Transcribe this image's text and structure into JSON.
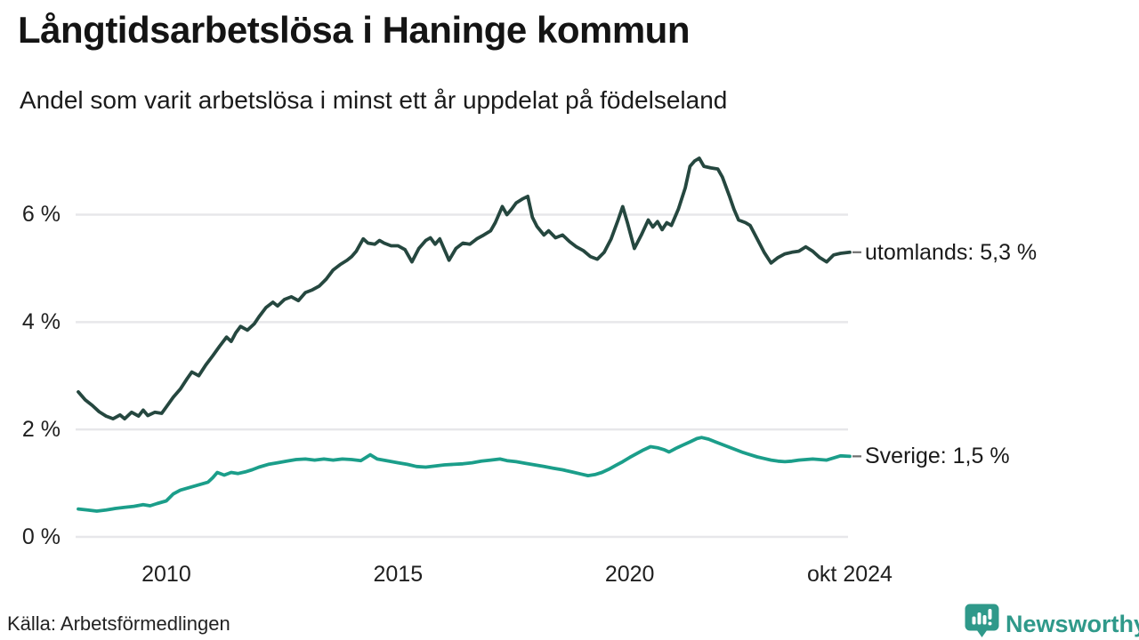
{
  "header": {
    "title": "Långtidsarbetslösa i Haninge kommun",
    "subtitle": "Andel som varit arbetslösa i minst ett år uppdelat på födelseland"
  },
  "footer": {
    "source": "Källa: Arbetsförmedlingen",
    "brand_name": "Newsworthy",
    "brand_color": "#2f998a",
    "brand_icon": "newsworthy-bubble-barchart-icon"
  },
  "chart_data": {
    "type": "line",
    "title": "Långtidsarbetslösa i Haninge kommun",
    "subtitle": "Andel som varit arbetslösa i minst ett år uppdelat på födelseland",
    "xlabel": "",
    "ylabel": "",
    "unit": "%",
    "grid": "horizontal",
    "legend_position": "right-end-annotations",
    "xlim": [
      2008.1,
      2024.75
    ],
    "ylim": [
      0,
      7.3
    ],
    "colors": {
      "gridline": "#e7e7ea",
      "leader_dash": "#6e6e6e",
      "text": "#1a1a1a"
    },
    "yticks": [
      {
        "label": "6 %",
        "value": 6
      },
      {
        "label": "4 %",
        "value": 4
      },
      {
        "label": "2 %",
        "value": 2
      },
      {
        "label": "0 %",
        "value": 0
      }
    ],
    "xticks": [
      {
        "label": "2010",
        "value": 2010
      },
      {
        "label": "2015",
        "value": 2015
      },
      {
        "label": "2020",
        "value": 2020
      },
      {
        "label": "okt 2024",
        "value": 2024.75
      }
    ],
    "series": [
      {
        "name": "utomlands",
        "label": "utomlands: 5,3 %",
        "last_value_label": "5,3 %",
        "color": "#25473f",
        "points": [
          [
            2008.1,
            2.7
          ],
          [
            2008.25,
            2.55
          ],
          [
            2008.4,
            2.45
          ],
          [
            2008.55,
            2.33
          ],
          [
            2008.7,
            2.25
          ],
          [
            2008.85,
            2.2
          ],
          [
            2009.0,
            2.27
          ],
          [
            2009.1,
            2.2
          ],
          [
            2009.25,
            2.32
          ],
          [
            2009.4,
            2.25
          ],
          [
            2009.5,
            2.36
          ],
          [
            2009.6,
            2.26
          ],
          [
            2009.75,
            2.32
          ],
          [
            2009.9,
            2.3
          ],
          [
            2010.0,
            2.42
          ],
          [
            2010.15,
            2.6
          ],
          [
            2010.3,
            2.75
          ],
          [
            2010.45,
            2.95
          ],
          [
            2010.55,
            3.07
          ],
          [
            2010.7,
            3.0
          ],
          [
            2010.85,
            3.2
          ],
          [
            2011.0,
            3.37
          ],
          [
            2011.15,
            3.55
          ],
          [
            2011.3,
            3.72
          ],
          [
            2011.4,
            3.64
          ],
          [
            2011.5,
            3.8
          ],
          [
            2011.6,
            3.92
          ],
          [
            2011.75,
            3.85
          ],
          [
            2011.9,
            3.97
          ],
          [
            2012.0,
            4.1
          ],
          [
            2012.15,
            4.27
          ],
          [
            2012.3,
            4.37
          ],
          [
            2012.4,
            4.3
          ],
          [
            2012.55,
            4.42
          ],
          [
            2012.7,
            4.47
          ],
          [
            2012.85,
            4.4
          ],
          [
            2013.0,
            4.55
          ],
          [
            2013.15,
            4.6
          ],
          [
            2013.3,
            4.67
          ],
          [
            2013.45,
            4.8
          ],
          [
            2013.6,
            4.97
          ],
          [
            2013.75,
            5.07
          ],
          [
            2013.9,
            5.15
          ],
          [
            2014.0,
            5.22
          ],
          [
            2014.1,
            5.32
          ],
          [
            2014.25,
            5.55
          ],
          [
            2014.35,
            5.47
          ],
          [
            2014.5,
            5.45
          ],
          [
            2014.6,
            5.52
          ],
          [
            2014.7,
            5.47
          ],
          [
            2014.85,
            5.42
          ],
          [
            2015.0,
            5.42
          ],
          [
            2015.15,
            5.35
          ],
          [
            2015.3,
            5.12
          ],
          [
            2015.45,
            5.37
          ],
          [
            2015.6,
            5.52
          ],
          [
            2015.7,
            5.57
          ],
          [
            2015.8,
            5.45
          ],
          [
            2015.9,
            5.55
          ],
          [
            2016.0,
            5.35
          ],
          [
            2016.1,
            5.15
          ],
          [
            2016.25,
            5.37
          ],
          [
            2016.4,
            5.47
          ],
          [
            2016.55,
            5.45
          ],
          [
            2016.7,
            5.55
          ],
          [
            2016.85,
            5.62
          ],
          [
            2017.0,
            5.7
          ],
          [
            2017.1,
            5.85
          ],
          [
            2017.25,
            6.15
          ],
          [
            2017.35,
            6.0
          ],
          [
            2017.45,
            6.1
          ],
          [
            2017.55,
            6.22
          ],
          [
            2017.7,
            6.3
          ],
          [
            2017.8,
            6.34
          ],
          [
            2017.9,
            5.95
          ],
          [
            2018.0,
            5.78
          ],
          [
            2018.15,
            5.62
          ],
          [
            2018.25,
            5.7
          ],
          [
            2018.4,
            5.57
          ],
          [
            2018.55,
            5.62
          ],
          [
            2018.7,
            5.5
          ],
          [
            2018.85,
            5.4
          ],
          [
            2019.0,
            5.33
          ],
          [
            2019.15,
            5.22
          ],
          [
            2019.3,
            5.17
          ],
          [
            2019.45,
            5.3
          ],
          [
            2019.6,
            5.55
          ],
          [
            2019.75,
            5.9
          ],
          [
            2019.85,
            6.15
          ],
          [
            2019.95,
            5.85
          ],
          [
            2020.1,
            5.37
          ],
          [
            2020.25,
            5.62
          ],
          [
            2020.4,
            5.9
          ],
          [
            2020.5,
            5.77
          ],
          [
            2020.6,
            5.87
          ],
          [
            2020.7,
            5.72
          ],
          [
            2020.8,
            5.85
          ],
          [
            2020.9,
            5.8
          ],
          [
            2021.05,
            6.1
          ],
          [
            2021.2,
            6.5
          ],
          [
            2021.3,
            6.9
          ],
          [
            2021.4,
            7.0
          ],
          [
            2021.5,
            7.05
          ],
          [
            2021.6,
            6.9
          ],
          [
            2021.75,
            6.87
          ],
          [
            2021.9,
            6.85
          ],
          [
            2022.0,
            6.7
          ],
          [
            2022.15,
            6.35
          ],
          [
            2022.25,
            6.1
          ],
          [
            2022.35,
            5.9
          ],
          [
            2022.5,
            5.85
          ],
          [
            2022.6,
            5.8
          ],
          [
            2022.75,
            5.55
          ],
          [
            2022.9,
            5.3
          ],
          [
            2023.05,
            5.1
          ],
          [
            2023.2,
            5.2
          ],
          [
            2023.35,
            5.27
          ],
          [
            2023.5,
            5.3
          ],
          [
            2023.65,
            5.32
          ],
          [
            2023.8,
            5.4
          ],
          [
            2023.95,
            5.32
          ],
          [
            2024.1,
            5.2
          ],
          [
            2024.25,
            5.12
          ],
          [
            2024.4,
            5.25
          ],
          [
            2024.55,
            5.28
          ],
          [
            2024.75,
            5.3
          ]
        ]
      },
      {
        "name": "Sverige",
        "label": "Sverige: 1,5 %",
        "last_value_label": "1,5 %",
        "color": "#1b9e8a",
        "points": [
          [
            2008.1,
            0.52
          ],
          [
            2008.3,
            0.5
          ],
          [
            2008.5,
            0.48
          ],
          [
            2008.7,
            0.5
          ],
          [
            2008.9,
            0.53
          ],
          [
            2009.1,
            0.55
          ],
          [
            2009.3,
            0.57
          ],
          [
            2009.5,
            0.6
          ],
          [
            2009.65,
            0.58
          ],
          [
            2009.8,
            0.62
          ],
          [
            2010.0,
            0.67
          ],
          [
            2010.15,
            0.8
          ],
          [
            2010.3,
            0.87
          ],
          [
            2010.5,
            0.92
          ],
          [
            2010.7,
            0.97
          ],
          [
            2010.9,
            1.02
          ],
          [
            2011.0,
            1.1
          ],
          [
            2011.1,
            1.2
          ],
          [
            2011.25,
            1.15
          ],
          [
            2011.4,
            1.2
          ],
          [
            2011.55,
            1.18
          ],
          [
            2011.7,
            1.21
          ],
          [
            2011.85,
            1.25
          ],
          [
            2012.0,
            1.3
          ],
          [
            2012.2,
            1.35
          ],
          [
            2012.4,
            1.38
          ],
          [
            2012.6,
            1.41
          ],
          [
            2012.8,
            1.44
          ],
          [
            2013.0,
            1.45
          ],
          [
            2013.2,
            1.43
          ],
          [
            2013.4,
            1.45
          ],
          [
            2013.6,
            1.43
          ],
          [
            2013.8,
            1.45
          ],
          [
            2014.0,
            1.44
          ],
          [
            2014.2,
            1.42
          ],
          [
            2014.4,
            1.53
          ],
          [
            2014.55,
            1.45
          ],
          [
            2014.75,
            1.42
          ],
          [
            2015.0,
            1.38
          ],
          [
            2015.2,
            1.35
          ],
          [
            2015.4,
            1.31
          ],
          [
            2015.6,
            1.3
          ],
          [
            2015.8,
            1.32
          ],
          [
            2016.0,
            1.34
          ],
          [
            2016.2,
            1.35
          ],
          [
            2016.4,
            1.36
          ],
          [
            2016.6,
            1.38
          ],
          [
            2016.8,
            1.41
          ],
          [
            2017.0,
            1.43
          ],
          [
            2017.2,
            1.45
          ],
          [
            2017.35,
            1.42
          ],
          [
            2017.55,
            1.4
          ],
          [
            2017.75,
            1.37
          ],
          [
            2017.95,
            1.34
          ],
          [
            2018.15,
            1.31
          ],
          [
            2018.35,
            1.28
          ],
          [
            2018.55,
            1.25
          ],
          [
            2018.75,
            1.21
          ],
          [
            2018.95,
            1.17
          ],
          [
            2019.1,
            1.14
          ],
          [
            2019.25,
            1.16
          ],
          [
            2019.4,
            1.2
          ],
          [
            2019.55,
            1.26
          ],
          [
            2019.7,
            1.33
          ],
          [
            2019.85,
            1.4
          ],
          [
            2020.0,
            1.48
          ],
          [
            2020.15,
            1.55
          ],
          [
            2020.3,
            1.62
          ],
          [
            2020.45,
            1.68
          ],
          [
            2020.6,
            1.66
          ],
          [
            2020.75,
            1.62
          ],
          [
            2020.85,
            1.58
          ],
          [
            2021.0,
            1.65
          ],
          [
            2021.15,
            1.71
          ],
          [
            2021.3,
            1.77
          ],
          [
            2021.45,
            1.83
          ],
          [
            2021.55,
            1.85
          ],
          [
            2021.7,
            1.82
          ],
          [
            2021.85,
            1.77
          ],
          [
            2022.0,
            1.72
          ],
          [
            2022.15,
            1.67
          ],
          [
            2022.3,
            1.62
          ],
          [
            2022.45,
            1.57
          ],
          [
            2022.6,
            1.53
          ],
          [
            2022.75,
            1.49
          ],
          [
            2022.9,
            1.46
          ],
          [
            2023.05,
            1.43
          ],
          [
            2023.2,
            1.41
          ],
          [
            2023.35,
            1.4
          ],
          [
            2023.5,
            1.41
          ],
          [
            2023.65,
            1.43
          ],
          [
            2023.8,
            1.44
          ],
          [
            2023.95,
            1.45
          ],
          [
            2024.1,
            1.44
          ],
          [
            2024.25,
            1.43
          ],
          [
            2024.4,
            1.47
          ],
          [
            2024.55,
            1.51
          ],
          [
            2024.75,
            1.5
          ]
        ]
      }
    ]
  }
}
